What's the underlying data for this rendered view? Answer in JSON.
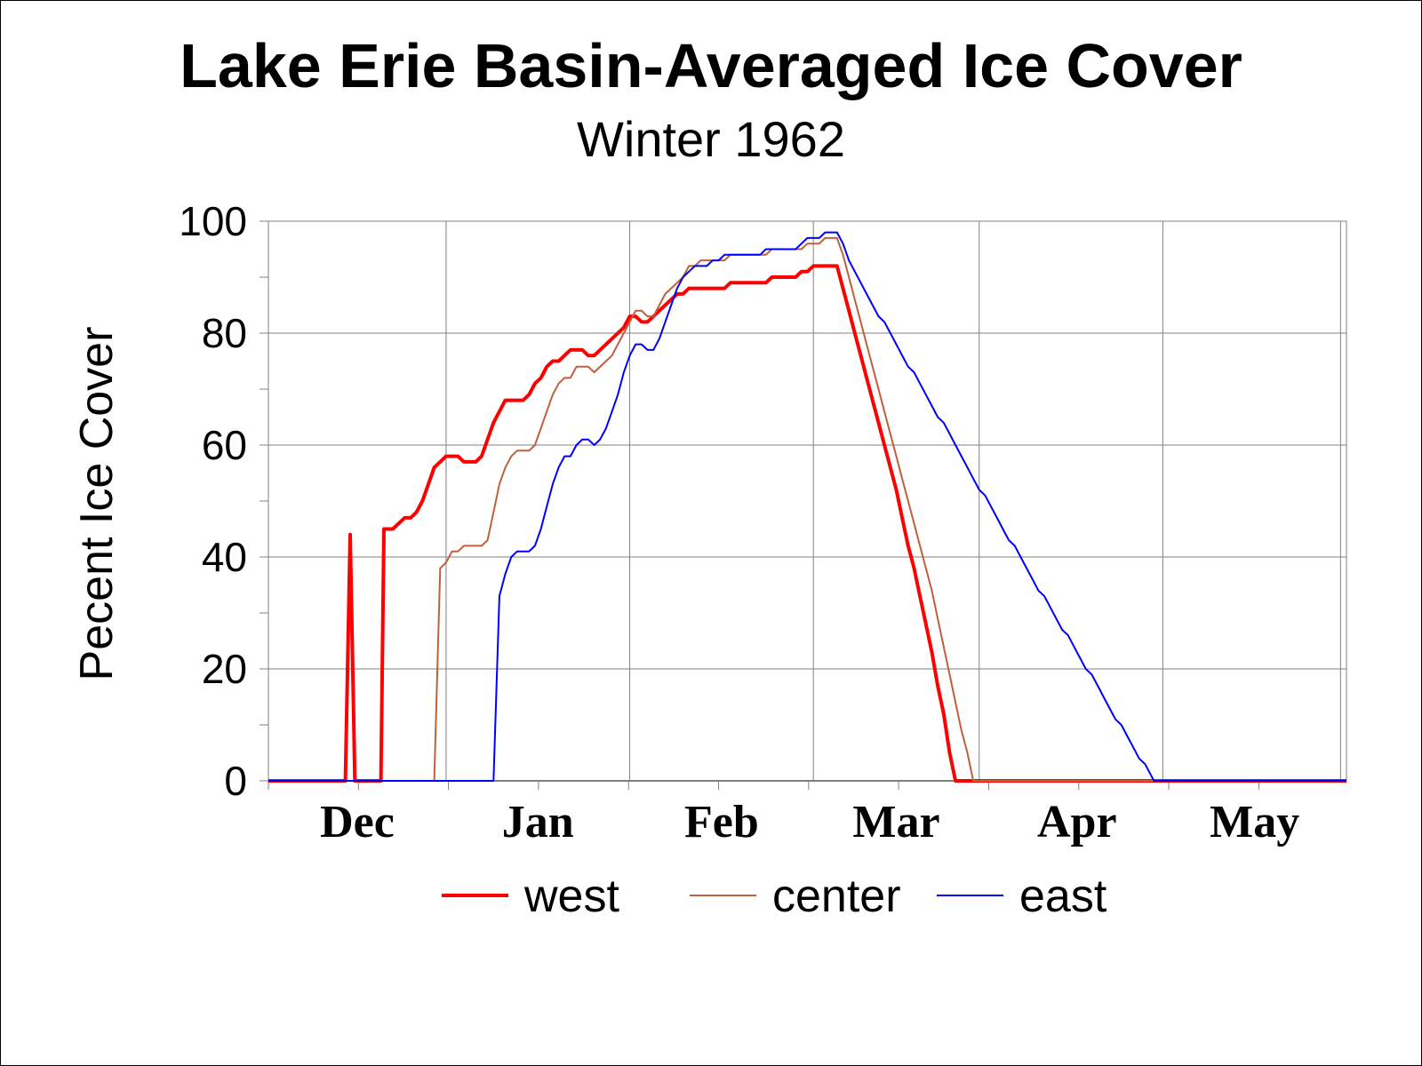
{
  "chart_data": {
    "type": "line",
    "title": "Lake Erie Basin-Averaged Ice Cover",
    "subtitle": "Winter 1962",
    "ylabel": "Pecent Ice Cover",
    "xlabel": "",
    "x_unit": "days since Nov 1",
    "ylim": [
      0,
      100
    ],
    "yticks": [
      0,
      20,
      40,
      60,
      80,
      100
    ],
    "xlim": [
      0,
      182
    ],
    "month_labels": [
      {
        "label": "Dec",
        "x": 15
      },
      {
        "label": "Jan",
        "x": 45.5
      },
      {
        "label": "Feb",
        "x": 76.5
      },
      {
        "label": "Mar",
        "x": 106
      },
      {
        "label": "Apr",
        "x": 136.5
      },
      {
        "label": "May",
        "x": 166.5
      }
    ],
    "month_boundaries": [
      30,
      61,
      92,
      120,
      151,
      181
    ],
    "grid": true,
    "legend_position": "bottom",
    "series": [
      {
        "name": "west",
        "color": "#ff0000",
        "stroke_width": 4,
        "points": [
          [
            0,
            0
          ],
          [
            13,
            0
          ],
          [
            13.8,
            44
          ],
          [
            14.6,
            0
          ],
          [
            19,
            0
          ],
          [
            19.5,
            45
          ],
          [
            21,
            45
          ],
          [
            23,
            47
          ],
          [
            24,
            47
          ],
          [
            25,
            48
          ],
          [
            26,
            50
          ],
          [
            27,
            53
          ],
          [
            28,
            56
          ],
          [
            29,
            57
          ],
          [
            30,
            58
          ],
          [
            32,
            58
          ],
          [
            33,
            57
          ],
          [
            35,
            57
          ],
          [
            36,
            58
          ],
          [
            37,
            61
          ],
          [
            38,
            64
          ],
          [
            40,
            68
          ],
          [
            43,
            68
          ],
          [
            44,
            69
          ],
          [
            45,
            71
          ],
          [
            46,
            72
          ],
          [
            47,
            74
          ],
          [
            48,
            75
          ],
          [
            49,
            75
          ],
          [
            50,
            76
          ],
          [
            51,
            77
          ],
          [
            53,
            77
          ],
          [
            54,
            76
          ],
          [
            55,
            76
          ],
          [
            56,
            77
          ],
          [
            58,
            79
          ],
          [
            60,
            81
          ],
          [
            61,
            83
          ],
          [
            62,
            83
          ],
          [
            63,
            82
          ],
          [
            64,
            82
          ],
          [
            65,
            83
          ],
          [
            67,
            85
          ],
          [
            68,
            86
          ],
          [
            69,
            87
          ],
          [
            70,
            87
          ],
          [
            71,
            88
          ],
          [
            77,
            88
          ],
          [
            78,
            89
          ],
          [
            84,
            89
          ],
          [
            85,
            90
          ],
          [
            89,
            90
          ],
          [
            90,
            91
          ],
          [
            91,
            91
          ],
          [
            92,
            92
          ],
          [
            96,
            92
          ],
          [
            97,
            88
          ],
          [
            98,
            84
          ],
          [
            99,
            80
          ],
          [
            100,
            76
          ],
          [
            101,
            72
          ],
          [
            102,
            68
          ],
          [
            103,
            64
          ],
          [
            104,
            60
          ],
          [
            105,
            56
          ],
          [
            106,
            52
          ],
          [
            107,
            47
          ],
          [
            108,
            42
          ],
          [
            109,
            38
          ],
          [
            110,
            33
          ],
          [
            111,
            28
          ],
          [
            112,
            23
          ],
          [
            113,
            17
          ],
          [
            114,
            12
          ],
          [
            115,
            5
          ],
          [
            116,
            0
          ],
          [
            182,
            0
          ]
        ]
      },
      {
        "name": "center",
        "color": "#c0603a",
        "stroke_width": 2,
        "points": [
          [
            0,
            0
          ],
          [
            28,
            0
          ],
          [
            29,
            38
          ],
          [
            30,
            39
          ],
          [
            31,
            41
          ],
          [
            32,
            41
          ],
          [
            33,
            42
          ],
          [
            36,
            42
          ],
          [
            37,
            43
          ],
          [
            38,
            48
          ],
          [
            39,
            53
          ],
          [
            40,
            56
          ],
          [
            41,
            58
          ],
          [
            42,
            59
          ],
          [
            44,
            59
          ],
          [
            45,
            60
          ],
          [
            46,
            63
          ],
          [
            47,
            66
          ],
          [
            48,
            69
          ],
          [
            49,
            71
          ],
          [
            50,
            72
          ],
          [
            51,
            72
          ],
          [
            52,
            74
          ],
          [
            53,
            74
          ],
          [
            54,
            74
          ],
          [
            55,
            73
          ],
          [
            57,
            75
          ],
          [
            58,
            76
          ],
          [
            59,
            78
          ],
          [
            60,
            80
          ],
          [
            61,
            82
          ],
          [
            62,
            84
          ],
          [
            63,
            84
          ],
          [
            64,
            83
          ],
          [
            65,
            83
          ],
          [
            66,
            85
          ],
          [
            67,
            87
          ],
          [
            68,
            88
          ],
          [
            69,
            89
          ],
          [
            70,
            90
          ],
          [
            71,
            92
          ],
          [
            72,
            92
          ],
          [
            73,
            93
          ],
          [
            77,
            93
          ],
          [
            78,
            94
          ],
          [
            84,
            94
          ],
          [
            85,
            95
          ],
          [
            90,
            95
          ],
          [
            91,
            96
          ],
          [
            93,
            96
          ],
          [
            94,
            97
          ],
          [
            96,
            97
          ],
          [
            97,
            94
          ],
          [
            98,
            90
          ],
          [
            99,
            86
          ],
          [
            100,
            82
          ],
          [
            101,
            78
          ],
          [
            102,
            74
          ],
          [
            103,
            70
          ],
          [
            104,
            66
          ],
          [
            105,
            62
          ],
          [
            106,
            58
          ],
          [
            107,
            54
          ],
          [
            108,
            50
          ],
          [
            109,
            46
          ],
          [
            110,
            42
          ],
          [
            111,
            38
          ],
          [
            112,
            34
          ],
          [
            113,
            29
          ],
          [
            114,
            24
          ],
          [
            115,
            19
          ],
          [
            116,
            14
          ],
          [
            117,
            9
          ],
          [
            118,
            5
          ],
          [
            119,
            0
          ],
          [
            182,
            0
          ]
        ]
      },
      {
        "name": "east",
        "color": "#0000ff",
        "stroke_width": 2,
        "points": [
          [
            0,
            0
          ],
          [
            38,
            0
          ],
          [
            39,
            33
          ],
          [
            40,
            37
          ],
          [
            41,
            40
          ],
          [
            42,
            41
          ],
          [
            44,
            41
          ],
          [
            45,
            42
          ],
          [
            46,
            45
          ],
          [
            47,
            49
          ],
          [
            48,
            53
          ],
          [
            49,
            56
          ],
          [
            50,
            58
          ],
          [
            51,
            58
          ],
          [
            52,
            60
          ],
          [
            53,
            61
          ],
          [
            54,
            61
          ],
          [
            55,
            60
          ],
          [
            56,
            61
          ],
          [
            57,
            63
          ],
          [
            58,
            66
          ],
          [
            59,
            69
          ],
          [
            60,
            73
          ],
          [
            61,
            76
          ],
          [
            62,
            78
          ],
          [
            63,
            78
          ],
          [
            64,
            77
          ],
          [
            65,
            77
          ],
          [
            66,
            79
          ],
          [
            67,
            82
          ],
          [
            68,
            85
          ],
          [
            69,
            88
          ],
          [
            70,
            90
          ],
          [
            71,
            91
          ],
          [
            72,
            92
          ],
          [
            74,
            92
          ],
          [
            75,
            93
          ],
          [
            76,
            93
          ],
          [
            77,
            94
          ],
          [
            83,
            94
          ],
          [
            84,
            95
          ],
          [
            89,
            95
          ],
          [
            90,
            96
          ],
          [
            91,
            97
          ],
          [
            93,
            97
          ],
          [
            94,
            98
          ],
          [
            96,
            98
          ],
          [
            97,
            96
          ],
          [
            98,
            93
          ],
          [
            99,
            91
          ],
          [
            100,
            89
          ],
          [
            101,
            87
          ],
          [
            102,
            85
          ],
          [
            103,
            83
          ],
          [
            104,
            82
          ],
          [
            105,
            80
          ],
          [
            106,
            78
          ],
          [
            107,
            76
          ],
          [
            108,
            74
          ],
          [
            109,
            73
          ],
          [
            110,
            71
          ],
          [
            111,
            69
          ],
          [
            112,
            67
          ],
          [
            113,
            65
          ],
          [
            114,
            64
          ],
          [
            115,
            62
          ],
          [
            116,
            60
          ],
          [
            117,
            58
          ],
          [
            118,
            56
          ],
          [
            119,
            54
          ],
          [
            120,
            52
          ],
          [
            121,
            51
          ],
          [
            122,
            49
          ],
          [
            123,
            47
          ],
          [
            124,
            45
          ],
          [
            125,
            43
          ],
          [
            126,
            42
          ],
          [
            127,
            40
          ],
          [
            128,
            38
          ],
          [
            129,
            36
          ],
          [
            130,
            34
          ],
          [
            131,
            33
          ],
          [
            132,
            31
          ],
          [
            133,
            29
          ],
          [
            134,
            27
          ],
          [
            135,
            26
          ],
          [
            136,
            24
          ],
          [
            137,
            22
          ],
          [
            138,
            20
          ],
          [
            139,
            19
          ],
          [
            140,
            17
          ],
          [
            141,
            15
          ],
          [
            142,
            13
          ],
          [
            143,
            11
          ],
          [
            144,
            10
          ],
          [
            145,
            8
          ],
          [
            146,
            6
          ],
          [
            147,
            4
          ],
          [
            148,
            3
          ],
          [
            149,
            1
          ],
          [
            149.5,
            0
          ],
          [
            182,
            0
          ]
        ]
      }
    ]
  }
}
